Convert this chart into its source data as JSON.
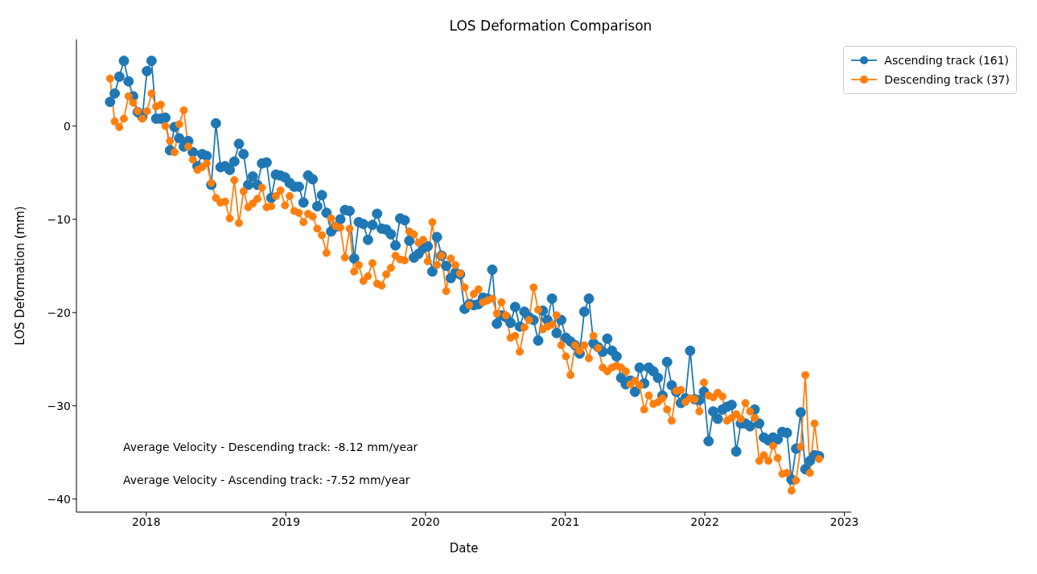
{
  "chart_data": {
    "type": "line",
    "title": "LOS Deformation Comparison",
    "xlabel": "Date",
    "ylabel": "LOS Deformation (mm)",
    "x": [
      2017.741,
      2017.774,
      2017.807,
      2017.84,
      2017.873,
      2017.906,
      2017.939,
      2017.972,
      2018.005,
      2018.038,
      2018.071,
      2018.104,
      2018.137,
      2018.17,
      2018.203,
      2018.236,
      2018.269,
      2018.301,
      2018.334,
      2018.367,
      2018.4,
      2018.433,
      2018.466,
      2018.499,
      2018.532,
      2018.565,
      2018.598,
      2018.631,
      2018.664,
      2018.697,
      2018.73,
      2018.763,
      2018.796,
      2018.829,
      2018.862,
      2018.895,
      2018.928,
      2018.961,
      2018.994,
      2019.027,
      2019.06,
      2019.093,
      2019.126,
      2019.159,
      2019.192,
      2019.225,
      2019.258,
      2019.291,
      2019.324,
      2019.357,
      2019.39,
      2019.423,
      2019.456,
      2019.489,
      2019.522,
      2019.555,
      2019.588,
      2019.62,
      2019.653,
      2019.686,
      2019.719,
      2019.752,
      2019.785,
      2019.818,
      2019.851,
      2019.884,
      2019.917,
      2019.95,
      2019.983,
      2020.016,
      2020.049,
      2020.082,
      2020.115,
      2020.148,
      2020.181,
      2020.214,
      2020.247,
      2020.28,
      2020.313,
      2020.346,
      2020.379,
      2020.412,
      2020.445,
      2020.478,
      2020.511,
      2020.544,
      2020.576,
      2020.609,
      2020.642,
      2020.675,
      2020.708,
      2020.741,
      2020.774,
      2020.807,
      2020.84,
      2020.873,
      2020.906,
      2020.939,
      2020.972,
      2021.005,
      2021.038,
      2021.071,
      2021.104,
      2021.137,
      2021.17,
      2021.203,
      2021.236,
      2021.269,
      2021.302,
      2021.335,
      2021.368,
      2021.401,
      2021.434,
      2021.467,
      2021.5,
      2021.533,
      2021.566,
      2021.599,
      2021.632,
      2021.665,
      2021.697,
      2021.73,
      2021.763,
      2021.796,
      2021.829,
      2021.862,
      2021.895,
      2021.928,
      2021.961,
      2021.994,
      2022.027,
      2022.06,
      2022.093,
      2022.126,
      2022.159,
      2022.192,
      2022.225,
      2022.258,
      2022.291,
      2022.324,
      2022.357,
      2022.39,
      2022.423,
      2022.456,
      2022.489,
      2022.522,
      2022.555,
      2022.588,
      2022.621,
      2022.654,
      2022.687,
      2022.72,
      2022.753,
      2022.786,
      2022.818
    ],
    "series": [
      {
        "name": "Ascending track (161)",
        "color": "#1f77b4",
        "values": [
          2.6,
          3.5,
          5.3,
          7.0,
          4.8,
          3.2,
          1.5,
          1.0,
          5.9,
          7.0,
          0.8,
          0.8,
          0.9,
          -2.6,
          -0.1,
          -1.3,
          -2.2,
          -1.6,
          -2.8,
          -4.3,
          -3.0,
          -3.2,
          -6.3,
          0.3,
          -4.4,
          -4.3,
          -4.7,
          -3.8,
          -1.9,
          -3.0,
          -6.3,
          -5.4,
          -6.3,
          -4.0,
          -3.9,
          -7.7,
          -5.2,
          -5.3,
          -5.5,
          -6.1,
          -6.5,
          -6.5,
          -8.2,
          -5.3,
          -5.7,
          -8.6,
          -7.4,
          -9.3,
          -11.3,
          -10.8,
          -10.0,
          -9.0,
          -9.1,
          -14.2,
          -10.3,
          -10.5,
          -12.2,
          -10.6,
          -9.4,
          -11.0,
          -11.1,
          -11.6,
          -12.8,
          -9.9,
          -10.1,
          -12.3,
          -14.1,
          -13.7,
          -13.1,
          -12.9,
          -15.6,
          -11.9,
          -13.9,
          -15.0,
          -16.3,
          -15.7,
          -15.9,
          -19.6,
          -19.1,
          -19.2,
          -19.1,
          -18.4,
          -18.5,
          -15.4,
          -21.2,
          -20.3,
          -20.5,
          -21.1,
          -19.4,
          -21.5,
          -19.9,
          -20.5,
          -20.8,
          -23.0,
          -19.8,
          -20.8,
          -18.5,
          -22.2,
          -20.8,
          -22.7,
          -23.1,
          -23.5,
          -24.4,
          -19.9,
          -18.5,
          -23.3,
          -23.7,
          -24.2,
          -22.8,
          -24.1,
          -24.7,
          -27.0,
          -27.7,
          -27.3,
          -28.5,
          -25.9,
          -27.6,
          -25.9,
          -26.3,
          -27.0,
          -28.9,
          -25.3,
          -27.8,
          -28.5,
          -29.7,
          -29.2,
          -24.1,
          -29.3,
          -29.4,
          -28.5,
          -33.8,
          -30.6,
          -31.4,
          -30.4,
          -30.1,
          -29.9,
          -34.9,
          -31.9,
          -31.9,
          -32.2,
          -30.4,
          -31.9,
          -33.4,
          -33.7,
          -33.4,
          -33.6,
          -32.8,
          -32.9,
          -37.9,
          -34.6,
          -30.7,
          -36.8,
          -35.9,
          -35.3,
          -35.4
        ]
      },
      {
        "name": "Descending track (37)",
        "color": "#ff7f0e",
        "values": [
          5.1,
          0.5,
          -0.1,
          0.8,
          3.2,
          2.5,
          1.6,
          0.8,
          1.6,
          3.5,
          2.1,
          2.3,
          0.0,
          -1.6,
          -2.8,
          0.2,
          1.7,
          -2.2,
          -3.6,
          -4.7,
          -4.4,
          -4.0,
          -6.1,
          -7.7,
          -8.2,
          -8.1,
          -9.9,
          -5.8,
          -10.4,
          -7.0,
          -8.7,
          -8.3,
          -7.8,
          -6.6,
          -8.7,
          -8.6,
          -7.5,
          -6.9,
          -8.5,
          -7.5,
          -9.1,
          -9.3,
          -10.3,
          -9.4,
          -9.7,
          -11.0,
          -11.7,
          -13.6,
          -9.9,
          -10.7,
          -10.9,
          -14.1,
          -11.0,
          -15.6,
          -14.9,
          -16.6,
          -16.1,
          -14.7,
          -16.9,
          -17.1,
          -15.9,
          -15.2,
          -13.9,
          -14.3,
          -14.4,
          -11.3,
          -11.6,
          -12.5,
          -12.2,
          -14.5,
          -10.3,
          -14.9,
          -13.9,
          -17.7,
          -14.2,
          -14.9,
          -15.8,
          -17.3,
          -19.2,
          -18.0,
          -17.5,
          -18.9,
          -18.7,
          -18.5,
          -20.1,
          -18.9,
          -20.3,
          -22.7,
          -22.5,
          -24.2,
          -21.6,
          -20.8,
          -17.3,
          -19.7,
          -21.8,
          -21.5,
          -21.3,
          -20.3,
          -23.5,
          -24.7,
          -26.7,
          -23.5,
          -24.1,
          -23.5,
          -24.9,
          -22.5,
          -23.8,
          -25.9,
          -26.3,
          -25.9,
          -25.7,
          -25.9,
          -26.3,
          -27.7,
          -27.3,
          -27.8,
          -30.4,
          -28.9,
          -29.8,
          -29.6,
          -29.2,
          -30.4,
          -31.6,
          -28.4,
          -28.3,
          -29.6,
          -29.2,
          -29.3,
          -30.6,
          -27.5,
          -28.9,
          -29.1,
          -28.6,
          -29.0,
          -31.6,
          -31.3,
          -30.9,
          -31.4,
          -29.7,
          -30.6,
          -31.3,
          -35.9,
          -35.3,
          -35.9,
          -34.3,
          -35.6,
          -37.3,
          -37.2,
          -39.1,
          -38.0,
          -34.4,
          -26.7,
          -37.2,
          -31.9,
          -35.7
        ]
      }
    ],
    "xlim": [
      2017.5,
      2023.05
    ],
    "xticks": [
      2018,
      2019,
      2020,
      2021,
      2022,
      2023
    ],
    "ylim": [
      -41.4,
      9.3
    ],
    "yticks": [
      {
        "value": -40,
        "label": "−40"
      },
      {
        "value": -30,
        "label": "−30"
      },
      {
        "value": -20,
        "label": "−20"
      },
      {
        "value": -10,
        "label": "−10"
      },
      0
    ],
    "annotations": [
      "Average Velocity - Descending track: -8.12 mm/year",
      "Average Velocity - Ascending track: -7.52 mm/year"
    ],
    "legend": "top right",
    "grid": false,
    "marker": "circle",
    "line_style": "solid"
  }
}
